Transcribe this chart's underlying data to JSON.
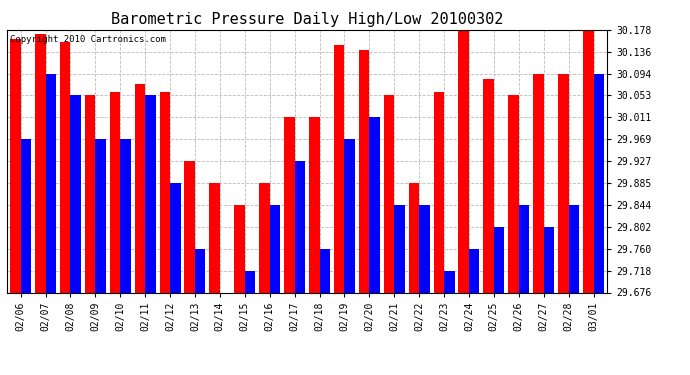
{
  "title": "Barometric Pressure Daily High/Low 20100302",
  "copyright_text": "Copyright 2010 Cartronics.com",
  "dates": [
    "02/06",
    "02/07",
    "02/08",
    "02/09",
    "02/10",
    "02/11",
    "02/12",
    "02/13",
    "02/14",
    "02/15",
    "02/16",
    "02/17",
    "02/18",
    "02/19",
    "02/20",
    "02/21",
    "02/22",
    "02/23",
    "02/24",
    "02/25",
    "02/26",
    "02/27",
    "02/28",
    "03/01"
  ],
  "highs": [
    30.16,
    30.17,
    30.155,
    30.053,
    30.06,
    30.075,
    30.06,
    29.927,
    29.885,
    29.844,
    29.885,
    30.011,
    30.011,
    30.15,
    30.14,
    30.053,
    29.885,
    30.06,
    30.218,
    30.085,
    30.053,
    30.094,
    30.094,
    30.178
  ],
  "lows": [
    29.969,
    30.094,
    30.053,
    29.969,
    29.969,
    30.053,
    29.885,
    29.76,
    29.676,
    29.718,
    29.844,
    29.927,
    29.76,
    29.969,
    30.011,
    29.844,
    29.844,
    29.718,
    29.76,
    29.802,
    29.844,
    29.802,
    29.844,
    30.094
  ],
  "high_color": "#ff0000",
  "low_color": "#0000ff",
  "bg_color": "#ffffff",
  "grid_color": "#bbbbbb",
  "ymin": 29.676,
  "ymax": 30.178,
  "yticks": [
    30.178,
    30.136,
    30.094,
    30.053,
    30.011,
    29.969,
    29.927,
    29.885,
    29.844,
    29.802,
    29.76,
    29.718,
    29.676
  ],
  "bar_width": 0.42,
  "title_fontsize": 11,
  "tick_fontsize": 7,
  "copyright_fontsize": 6.5
}
